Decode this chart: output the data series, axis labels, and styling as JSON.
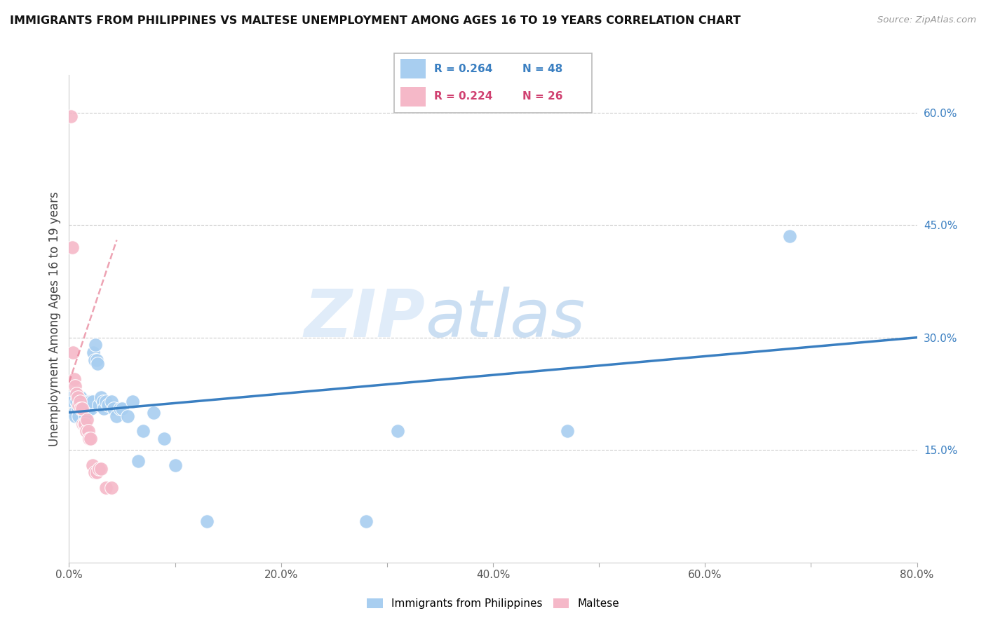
{
  "title": "IMMIGRANTS FROM PHILIPPINES VS MALTESE UNEMPLOYMENT AMONG AGES 16 TO 19 YEARS CORRELATION CHART",
  "source": "Source: ZipAtlas.com",
  "ylabel": "Unemployment Among Ages 16 to 19 years",
  "xlim": [
    0.0,
    0.8
  ],
  "ylim": [
    0.0,
    0.65
  ],
  "xticks": [
    0.0,
    0.1,
    0.2,
    0.3,
    0.4,
    0.5,
    0.6,
    0.7,
    0.8
  ],
  "xtick_labels": [
    "0.0%",
    "",
    "20.0%",
    "",
    "40.0%",
    "",
    "60.0%",
    "",
    "80.0%"
  ],
  "yticks_right": [
    0.15,
    0.3,
    0.45,
    0.6
  ],
  "ytick_labels_right": [
    "15.0%",
    "30.0%",
    "45.0%",
    "60.0%"
  ],
  "watermark_zip": "ZIP",
  "watermark_atlas": "atlas",
  "blue_color": "#a8cef0",
  "pink_color": "#f5b8c8",
  "blue_line_color": "#3a7fc1",
  "pink_line_color": "#e8849a",
  "legend_R_blue": "R = 0.264",
  "legend_N_blue": "N = 48",
  "legend_R_pink": "R = 0.224",
  "legend_N_pink": "N = 26",
  "blue_scatter_x": [
    0.003,
    0.004,
    0.005,
    0.006,
    0.007,
    0.008,
    0.009,
    0.01,
    0.011,
    0.012,
    0.013,
    0.014,
    0.015,
    0.016,
    0.017,
    0.018,
    0.019,
    0.02,
    0.021,
    0.022,
    0.023,
    0.024,
    0.025,
    0.026,
    0.027,
    0.028,
    0.03,
    0.032,
    0.033,
    0.035,
    0.037,
    0.04,
    0.042,
    0.045,
    0.048,
    0.05,
    0.055,
    0.06,
    0.065,
    0.07,
    0.08,
    0.09,
    0.1,
    0.13,
    0.28,
    0.31,
    0.47,
    0.68
  ],
  "blue_scatter_y": [
    0.22,
    0.215,
    0.2,
    0.195,
    0.215,
    0.205,
    0.195,
    0.21,
    0.22,
    0.205,
    0.21,
    0.2,
    0.195,
    0.21,
    0.21,
    0.215,
    0.205,
    0.215,
    0.205,
    0.215,
    0.28,
    0.27,
    0.29,
    0.27,
    0.265,
    0.21,
    0.22,
    0.215,
    0.205,
    0.215,
    0.21,
    0.215,
    0.205,
    0.195,
    0.205,
    0.205,
    0.195,
    0.215,
    0.135,
    0.175,
    0.2,
    0.165,
    0.13,
    0.055,
    0.055,
    0.175,
    0.175,
    0.435
  ],
  "pink_scatter_x": [
    0.002,
    0.003,
    0.004,
    0.005,
    0.006,
    0.007,
    0.008,
    0.009,
    0.01,
    0.011,
    0.012,
    0.013,
    0.014,
    0.015,
    0.016,
    0.017,
    0.018,
    0.019,
    0.02,
    0.022,
    0.024,
    0.026,
    0.028,
    0.03,
    0.035,
    0.04
  ],
  "pink_scatter_y": [
    0.595,
    0.42,
    0.28,
    0.245,
    0.235,
    0.225,
    0.22,
    0.21,
    0.215,
    0.205,
    0.205,
    0.185,
    0.185,
    0.185,
    0.175,
    0.19,
    0.175,
    0.165,
    0.165,
    0.13,
    0.12,
    0.12,
    0.125,
    0.125,
    0.1,
    0.1
  ],
  "blue_trend_x": [
    0.0,
    0.8
  ],
  "blue_trend_y": [
    0.2,
    0.3
  ],
  "pink_trend_x": [
    0.0,
    0.045
  ],
  "pink_trend_y": [
    0.24,
    0.43
  ]
}
